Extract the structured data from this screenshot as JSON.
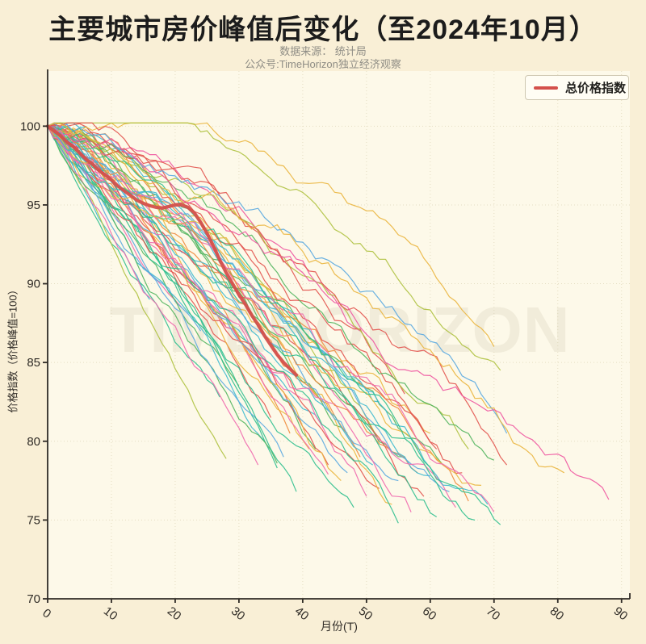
{
  "header": {
    "title": "主要城市房价峰值后变化（至2024年10月）",
    "subtitle_line1": "数据来源： 统计局",
    "subtitle_line2": "公众号:TimeHorizon独立经济观察"
  },
  "watermark": "TIMEHORIZON",
  "legend": {
    "label": "总价格指数",
    "swatch_color": "#d4504b"
  },
  "colors": {
    "background": "#f9efd6",
    "plot_background": "#fdf9e9",
    "grid": "#d8cfae",
    "axis": "#2f2b26",
    "title": "#1c1c1c",
    "subtitle": "#8f8d85",
    "watermark_color": "#6b5a36",
    "watermark_opacity": "0.08"
  },
  "chart_data": {
    "type": "line",
    "title": "主要城市房价峰值后变化（至2024年10月）",
    "xlabel": "月份(T)",
    "ylabel": "价格指数（价格峰值=100）",
    "xlim": [
      0,
      91.3
    ],
    "ylim": [
      70,
      103.5
    ],
    "xticks": [
      0,
      10,
      20,
      30,
      40,
      50,
      60,
      70,
      80,
      90
    ],
    "yticks": [
      70,
      75,
      80,
      85,
      90,
      95,
      100
    ],
    "grid": true,
    "legend_position": "upper-right",
    "x_tick_rotation_deg": 38,
    "palette": [
      "#e2534e",
      "#ef8a3c",
      "#eab53e",
      "#d7c63f",
      "#aec13f",
      "#53b55f",
      "#2fbf8e",
      "#3db9cf",
      "#5aa8e0",
      "#6a93dd",
      "#ef6aae",
      "#ee55a0"
    ],
    "index_line": {
      "name": "总价格指数",
      "color": "#d4504b",
      "width": 4.2,
      "points": [
        [
          0,
          100
        ],
        [
          1,
          99.7
        ],
        [
          2,
          99.4
        ],
        [
          3,
          99.0
        ],
        [
          4,
          98.7
        ],
        [
          5,
          98.3
        ],
        [
          6,
          97.9
        ],
        [
          7,
          97.6
        ],
        [
          8,
          97.2
        ],
        [
          9,
          96.9
        ],
        [
          10,
          96.6
        ],
        [
          11,
          96.2
        ],
        [
          12,
          95.9
        ],
        [
          13,
          95.6
        ],
        [
          14,
          95.3
        ],
        [
          15,
          95.1
        ],
        [
          16,
          94.95
        ],
        [
          17,
          94.85
        ],
        [
          18,
          94.8
        ],
        [
          19,
          94.9
        ],
        [
          20,
          95.0
        ],
        [
          21,
          95.0
        ],
        [
          22,
          94.85
        ],
        [
          23,
          94.5
        ],
        [
          24,
          93.9
        ],
        [
          25,
          93.2
        ],
        [
          26,
          92.4
        ],
        [
          27,
          91.5
        ],
        [
          28,
          90.7
        ],
        [
          29,
          90.0
        ],
        [
          30,
          89.3
        ],
        [
          31,
          88.7
        ],
        [
          32,
          88.0
        ],
        [
          33,
          87.4
        ],
        [
          34,
          86.7
        ],
        [
          35,
          86.1
        ],
        [
          36,
          85.5
        ],
        [
          37,
          85.0
        ],
        [
          38,
          84.6
        ],
        [
          39,
          84.2
        ]
      ]
    },
    "city_lines": {
      "description": "未标注的各城市房价轨迹（峰值=100），自峰值起按月下行",
      "start_point": [
        0,
        100
      ],
      "count": 61,
      "series_format": [
        "palette_color_index",
        "end_month_T",
        "end_index_value",
        "curve_exponent",
        "wobble",
        "seed"
      ],
      "series": [
        [
          7,
          16,
          89.0,
          1.0,
          0.55,
          11
        ],
        [
          10,
          21,
          88.5,
          1.0,
          0.6,
          12
        ],
        [
          8,
          24,
          87.0,
          1.0,
          0.6,
          13
        ],
        [
          6,
          27,
          82.8,
          1.0,
          0.7,
          14
        ],
        [
          4,
          28,
          78.9,
          1.05,
          0.6,
          15
        ],
        [
          5,
          30,
          83.5,
          1.1,
          0.7,
          16
        ],
        [
          10,
          33,
          78.5,
          1.0,
          0.8,
          17
        ],
        [
          7,
          34,
          80.0,
          1.05,
          0.65,
          18
        ],
        [
          0,
          35,
          81.5,
          1.1,
          0.8,
          19
        ],
        [
          6,
          36,
          78.3,
          1.1,
          0.7,
          20
        ],
        [
          5,
          36,
          78.6,
          1.0,
          0.8,
          21
        ],
        [
          8,
          37,
          79.0,
          1.0,
          0.7,
          22
        ],
        [
          1,
          38,
          80.5,
          1.15,
          0.8,
          23
        ],
        [
          6,
          39,
          76.8,
          1.0,
          0.8,
          24
        ],
        [
          2,
          41,
          79.5,
          1.2,
          0.9,
          25
        ],
        [
          5,
          42,
          79.5,
          1.15,
          0.8,
          26
        ],
        [
          7,
          43,
          81.0,
          1.2,
          0.7,
          27
        ],
        [
          0,
          44,
          78.5,
          1.1,
          0.9,
          28
        ],
        [
          10,
          44,
          77.9,
          1.05,
          0.8,
          29
        ],
        [
          2,
          45,
          84.0,
          1.4,
          0.9,
          30
        ],
        [
          2,
          46,
          77.5,
          1.1,
          1.0,
          31
        ],
        [
          8,
          47,
          78.0,
          1.1,
          0.8,
          32
        ],
        [
          5,
          47,
          80.5,
          1.25,
          0.9,
          33
        ],
        [
          6,
          48,
          75.8,
          1.05,
          0.8,
          34
        ],
        [
          1,
          49,
          79.0,
          1.2,
          0.9,
          35
        ],
        [
          11,
          49,
          87.0,
          1.8,
          0.9,
          36
        ],
        [
          10,
          50,
          76.5,
          1.1,
          1.0,
          37
        ],
        [
          7,
          51,
          78.5,
          1.15,
          0.8,
          38
        ],
        [
          0,
          52,
          77.0,
          1.1,
          1.0,
          39
        ],
        [
          4,
          52,
          80.0,
          1.3,
          0.9,
          40
        ],
        [
          7,
          52,
          82.5,
          1.4,
          0.8,
          41
        ],
        [
          2,
          54,
          76.0,
          1.15,
          1.0,
          42
        ],
        [
          6,
          55,
          74.8,
          1.1,
          0.9,
          43
        ],
        [
          8,
          55,
          77.5,
          1.2,
          0.8,
          44
        ],
        [
          5,
          56,
          79.0,
          1.3,
          0.9,
          45
        ],
        [
          0,
          56,
          83.0,
          1.5,
          0.9,
          46
        ],
        [
          10,
          57,
          75.5,
          1.1,
          1.0,
          47
        ],
        [
          1,
          58,
          78.0,
          1.25,
          0.9,
          48
        ],
        [
          0,
          59,
          76.5,
          1.15,
          1.0,
          49
        ],
        [
          7,
          60,
          77.8,
          1.2,
          0.9,
          50
        ],
        [
          2,
          60,
          80.5,
          1.4,
          1.0,
          51
        ],
        [
          6,
          61,
          75.2,
          1.1,
          0.9,
          52
        ],
        [
          0,
          61,
          79.5,
          1.25,
          0.9,
          53
        ],
        [
          5,
          62,
          78.5,
          1.3,
          0.9,
          54
        ],
        [
          8,
          63,
          76.8,
          1.2,
          0.8,
          56
        ],
        [
          10,
          64,
          75.8,
          1.15,
          1.0,
          57
        ],
        [
          0,
          65,
          78.0,
          1.25,
          1.0,
          58
        ],
        [
          1,
          66,
          76.2,
          1.2,
          0.9,
          59
        ],
        [
          4,
          66,
          79.5,
          1.45,
          0.9,
          60
        ],
        [
          6,
          67,
          75.0,
          1.15,
          0.9,
          61
        ],
        [
          2,
          68,
          77.2,
          1.3,
          1.0,
          62
        ],
        [
          7,
          69,
          76.0,
          1.2,
          0.9,
          63
        ],
        [
          5,
          70,
          78.8,
          1.4,
          0.9,
          64
        ],
        [
          2,
          70,
          86.0,
          2.4,
          0.7,
          65
        ],
        [
          10,
          70,
          75.5,
          1.2,
          1.0,
          66
        ],
        [
          6,
          71,
          74.7,
          1.15,
          0.9,
          67
        ],
        [
          4,
          71,
          84.5,
          1.9,
          0.7,
          68
        ],
        [
          0,
          72,
          78.5,
          1.3,
          1.0,
          69
        ],
        [
          8,
          72,
          80.5,
          1.5,
          0.8,
          70
        ],
        [
          2,
          81,
          78.0,
          1.4,
          1.0,
          71
        ],
        [
          11,
          88,
          76.3,
          1.3,
          1.0,
          72
        ]
      ]
    }
  }
}
